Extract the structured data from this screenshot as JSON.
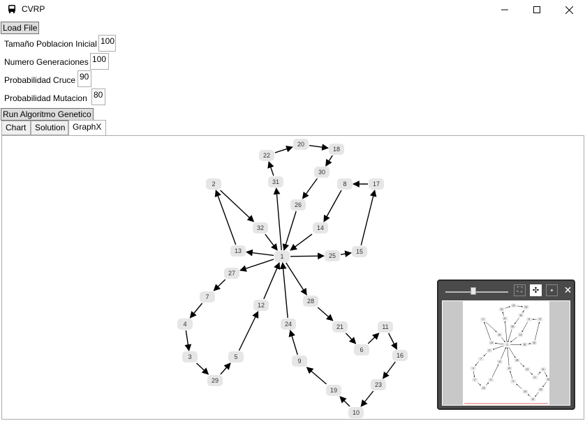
{
  "window": {
    "title": "CVRP"
  },
  "toolbar": {
    "load_file_label": "Load File",
    "run_label": "Run Algoritmo Genetico"
  },
  "params": {
    "population_label": "Tamaño Poblacion Inicial",
    "population_value": "100",
    "generations_label": "Numero Generaciones",
    "generations_value": "100",
    "crossover_label": "Probabilidad Cruce",
    "crossover_value": "90",
    "mutation_label": "Probabilidad Mutacion",
    "mutation_value": "80"
  },
  "tabs": [
    {
      "label": "Chart"
    },
    {
      "label": "Solution"
    },
    {
      "label": "GraphX"
    }
  ],
  "graph": {
    "nodes": [
      "1",
      "2",
      "3",
      "4",
      "5",
      "6",
      "7",
      "8",
      "9",
      "10",
      "11",
      "12",
      "13",
      "14",
      "15",
      "16",
      "17",
      "18",
      "19",
      "20",
      "21",
      "22",
      "23",
      "24",
      "25",
      "26",
      "27",
      "28",
      "29",
      "30",
      "31",
      "32"
    ],
    "edges": [
      [
        "1",
        "13"
      ],
      [
        "13",
        "2"
      ],
      [
        "2",
        "32"
      ],
      [
        "32",
        "1"
      ],
      [
        "1",
        "31"
      ],
      [
        "31",
        "22"
      ],
      [
        "22",
        "20"
      ],
      [
        "20",
        "18"
      ],
      [
        "18",
        "30"
      ],
      [
        "30",
        "26"
      ],
      [
        "26",
        "1"
      ],
      [
        "1",
        "25"
      ],
      [
        "25",
        "15"
      ],
      [
        "15",
        "17"
      ],
      [
        "17",
        "8"
      ],
      [
        "8",
        "14"
      ],
      [
        "14",
        "1"
      ],
      [
        "1",
        "27"
      ],
      [
        "27",
        "7"
      ],
      [
        "7",
        "4"
      ],
      [
        "4",
        "3"
      ],
      [
        "3",
        "29"
      ],
      [
        "29",
        "5"
      ],
      [
        "5",
        "12"
      ],
      [
        "12",
        "1"
      ],
      [
        "1",
        "28"
      ],
      [
        "28",
        "21"
      ],
      [
        "21",
        "6"
      ],
      [
        "6",
        "11"
      ],
      [
        "11",
        "16"
      ],
      [
        "16",
        "23"
      ],
      [
        "23",
        "10"
      ],
      [
        "10",
        "19"
      ],
      [
        "19",
        "9"
      ],
      [
        "9",
        "24"
      ],
      [
        "24",
        "1"
      ]
    ]
  },
  "colors": {
    "node_fill": "#e6e6e6",
    "edge": "#000000",
    "minimap_bg": "#4a4a4a"
  }
}
